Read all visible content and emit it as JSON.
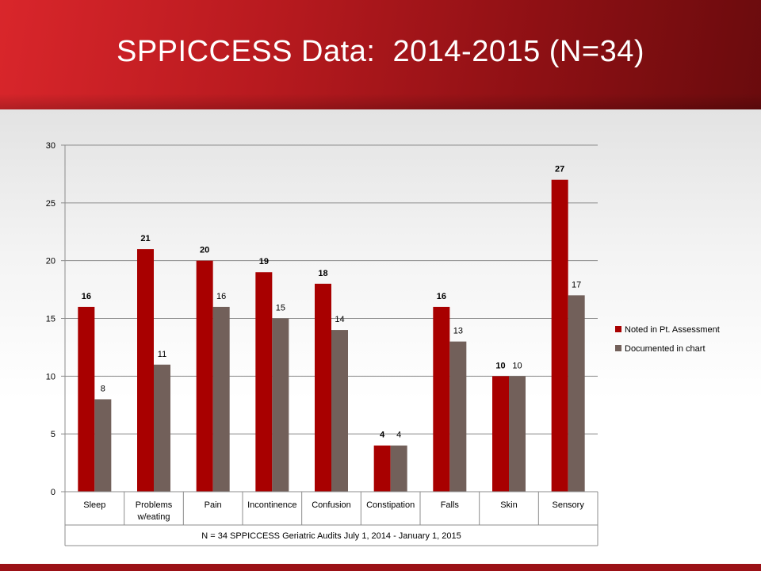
{
  "slide": {
    "title": "SPPICCESS Data:  2014-2015 (N=34)"
  },
  "colors": {
    "series1": "#a80000",
    "series2": "#72605a",
    "banner": "#b81a1f"
  },
  "chart_data": {
    "type": "bar",
    "categories": [
      [
        "Sleep"
      ],
      [
        "Problems",
        "w/eating"
      ],
      [
        "Pain"
      ],
      [
        "Incontinence"
      ],
      [
        "Confusion"
      ],
      [
        "Constipation"
      ],
      [
        "Falls"
      ],
      [
        "Skin"
      ],
      [
        "Sensory"
      ]
    ],
    "series": [
      {
        "name": "Noted in Pt. Assessment",
        "values": [
          16,
          21,
          20,
          19,
          18,
          4,
          16,
          10,
          27
        ],
        "label_bold": true
      },
      {
        "name": "Documented in chart",
        "values": [
          8,
          11,
          16,
          15,
          14,
          4,
          13,
          10,
          17
        ],
        "label_bold": false
      }
    ],
    "ylim": [
      0,
      30
    ],
    "yticks": [
      0,
      5,
      10,
      15,
      20,
      25,
      30
    ],
    "grid": true,
    "legend": "right",
    "footer": "N = 34  SPPICCESS Geriatric Audits  July 1, 2014 - January 1, 2015"
  }
}
